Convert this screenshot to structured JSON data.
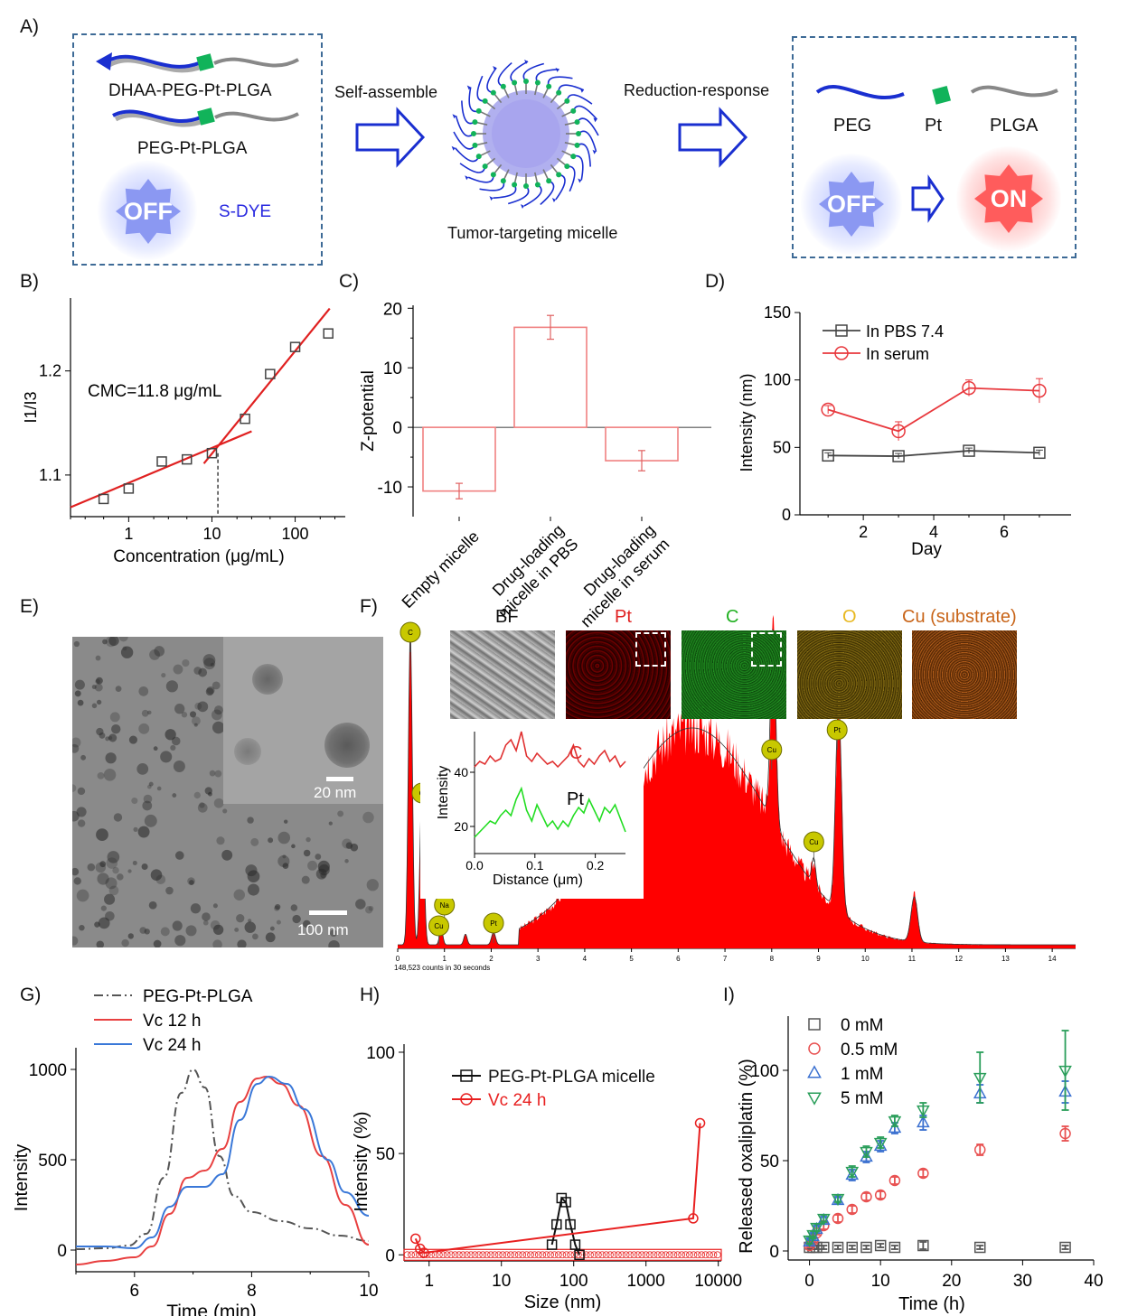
{
  "panel_labels": {
    "a": "A)",
    "b": "B)",
    "c": "C)",
    "d": "D)",
    "e": "E)",
    "f": "F)",
    "g": "G)",
    "h": "H)",
    "i": "I)"
  },
  "schematic": {
    "polymer1": "DHAA-PEG-Pt-PLGA",
    "polymer2": "PEG-Pt-PLGA",
    "off_label": "OFF",
    "dye_label": "S-DYE",
    "step1": "Self-assemble",
    "micelle_caption": "Tumor-targeting micelle",
    "step2": "Reduction-response",
    "part_peg": "PEG",
    "part_pt": "Pt",
    "part_plga": "PLGA",
    "off_label2": "OFF",
    "on_label": "ON",
    "colors": {
      "peg": "#1a2fd0",
      "pt": "#11b35a",
      "plga": "#888888",
      "box": "#3d6a96",
      "off": "#8b98f2",
      "on": "#ff5c5c"
    }
  },
  "chart_data": [
    {
      "id": "B",
      "type": "scatter",
      "xscale": "log",
      "x": [
        0.5,
        1,
        2.5,
        5,
        10,
        25,
        50,
        100,
        250
      ],
      "y": [
        1.077,
        1.087,
        1.113,
        1.115,
        1.121,
        1.154,
        1.197,
        1.223,
        1.236
      ],
      "fit_low": {
        "x": [
          0.2,
          30
        ],
        "y": [
          1.069,
          1.142
        ]
      },
      "fit_high": {
        "x": [
          8,
          260
        ],
        "y": [
          1.111,
          1.26
        ]
      },
      "cmc_x": 11.8,
      "annotation": "CMC=11.8 μg/mL",
      "xlabel": "Concentration (μg/mL)",
      "ylabel": "I1/I3",
      "xticks": [
        "1",
        "10",
        "100"
      ],
      "yticks": [
        "1.1",
        "1.2"
      ],
      "xlim": [
        0.2,
        400
      ],
      "ylim": [
        1.06,
        1.27
      ]
    },
    {
      "id": "C",
      "type": "bar",
      "categories": [
        "Empty micelle",
        "Drug-loading micelle in PBS",
        "Drug-loading micelle in serum"
      ],
      "category_lines": [
        [
          "Empty micelle"
        ],
        [
          "Drug-loading",
          "micelle in PBS"
        ],
        [
          "Drug-loading",
          "micelle in serum"
        ]
      ],
      "values": [
        -10.7,
        16.8,
        -5.6
      ],
      "errors": [
        1.3,
        2.0,
        1.7
      ],
      "ylabel": "Z-potential",
      "yticks": [
        "-10",
        "0",
        "10",
        "20"
      ],
      "ylim": [
        -15,
        20.5
      ],
      "color": "#f08080"
    },
    {
      "id": "D",
      "type": "line",
      "x": [
        1,
        3,
        5,
        7
      ],
      "series": [
        {
          "name": "In PBS 7.4",
          "values": [
            44,
            43.5,
            47.5,
            46
          ],
          "errors": [
            2,
            2,
            2,
            2
          ],
          "color": "#444444",
          "marker": "square"
        },
        {
          "name": "In serum",
          "values": [
            78,
            62,
            94,
            92
          ],
          "errors": [
            3,
            7,
            6,
            9
          ],
          "color": "#e8383d",
          "marker": "circle"
        }
      ],
      "xlabel": "Day",
      "ylabel": "Intensity (nm)",
      "xticks": [
        "2",
        "4",
        "6"
      ],
      "yticks": [
        "0",
        "50",
        "100",
        "150"
      ],
      "xlim": [
        0.2,
        7.9
      ],
      "ylim": [
        0,
        150
      ]
    },
    {
      "id": "F",
      "type": "area",
      "xlabel_note": "148,523 counts in 30 seconds",
      "xticks": [
        "0",
        "1",
        "2",
        "3",
        "4",
        "5",
        "6",
        "7",
        "8",
        "9",
        "10",
        "11",
        "12",
        "13",
        "14"
      ],
      "xlim": [
        0,
        14.5
      ],
      "peaks": [
        {
          "label": "C",
          "x": 0.27
        },
        {
          "label": "O",
          "x": 0.52
        },
        {
          "label": "Na",
          "x": 1.0
        },
        {
          "label": "Cu",
          "x": 0.93
        },
        {
          "label": "Pt",
          "x": 2.05
        },
        {
          "label": "Cu",
          "x": 8.0
        },
        {
          "label": "Cu",
          "x": 8.9
        },
        {
          "label": "Pt",
          "x": 9.4
        }
      ],
      "map_labels": [
        "BF",
        "Pt",
        "C",
        "O",
        "Cu (substrate)"
      ],
      "inset": {
        "xlabel": "Distance (μm)",
        "ylabel": "Intensity",
        "xticks": [
          "0.0",
          "0.1",
          "0.2"
        ],
        "yticks": [
          "20",
          "40"
        ],
        "series": [
          {
            "name": "C",
            "color": "#e03030"
          },
          {
            "name": "Pt",
            "color": "#22dd22"
          }
        ]
      }
    },
    {
      "id": "G",
      "type": "line",
      "series": [
        {
          "name": "PEG-Pt-PLGA",
          "color": "#555555",
          "style": "dashdot",
          "x": [
            5,
            5.5,
            5.9,
            6.2,
            6.5,
            6.8,
            7.0,
            7.2,
            7.45,
            7.7,
            8.0,
            8.5,
            9.0,
            9.5,
            10
          ],
          "values": [
            5,
            10,
            25,
            90,
            400,
            870,
            1000,
            900,
            520,
            300,
            210,
            160,
            120,
            80,
            50
          ]
        },
        {
          "name": "Vc 12 h",
          "color": "#e84040",
          "style": "solid",
          "x": [
            5,
            5.5,
            6.0,
            6.3,
            6.6,
            6.9,
            7.2,
            7.5,
            7.8,
            8.1,
            8.25,
            8.5,
            8.8,
            9.2,
            9.6,
            10
          ],
          "values": [
            -80,
            -60,
            -40,
            20,
            200,
            400,
            440,
            560,
            820,
            950,
            960,
            920,
            800,
            520,
            250,
            30
          ]
        },
        {
          "name": "Vc 24 h",
          "color": "#3a78d8",
          "style": "solid",
          "x": [
            5,
            5.5,
            6.0,
            6.3,
            6.6,
            6.9,
            7.2,
            7.5,
            7.8,
            8.1,
            8.3,
            8.6,
            8.9,
            9.3,
            9.6,
            10
          ],
          "values": [
            20,
            20,
            10,
            70,
            240,
            350,
            350,
            420,
            720,
            920,
            960,
            920,
            780,
            500,
            320,
            190
          ]
        }
      ],
      "xlabel": "Time (min)",
      "ylabel": "Intensity",
      "xticks": [
        "6",
        "8",
        "10"
      ],
      "yticks": [
        "0",
        "500",
        "1000"
      ],
      "xlim": [
        5,
        10
      ],
      "ylim": [
        -120,
        1120
      ]
    },
    {
      "id": "H",
      "type": "line",
      "xscale": "log",
      "series": [
        {
          "name": "PEG-Pt-PLGA micelle",
          "color": "#111111",
          "marker": "square",
          "x": [
            50,
            58,
            68,
            78,
            90,
            105,
            120
          ],
          "values": [
            5,
            15,
            28,
            26,
            15,
            5,
            0
          ]
        },
        {
          "name": "Vc 24 h",
          "color": "#e82020",
          "marker": "circle",
          "x": [
            0.65,
            0.75,
            0.85,
            4500,
            5600
          ],
          "values": [
            8,
            3,
            1,
            18,
            65
          ]
        }
      ],
      "xlabel": "Size (nm)",
      "ylabel": "Intensity (%)",
      "xticks": [
        "1",
        "10",
        "100",
        "1000",
        "10000"
      ],
      "yticks": [
        "0",
        "50",
        "100"
      ],
      "xlim": [
        0.45,
        11000
      ],
      "ylim": [
        -3,
        104
      ]
    },
    {
      "id": "I",
      "type": "scatter",
      "series": [
        {
          "name": "0 mM",
          "color": "#555555",
          "marker": "square",
          "x": [
            0,
            0.5,
            1,
            2,
            4,
            6,
            8,
            10,
            12,
            16,
            24,
            36
          ],
          "values": [
            2,
            2,
            2,
            2,
            2,
            2,
            2,
            3,
            2,
            3,
            2,
            2
          ],
          "errors": [
            1,
            1,
            1,
            1,
            1,
            1,
            1,
            1,
            1,
            2,
            1,
            1
          ]
        },
        {
          "name": "0.5 mM",
          "color": "#e85050",
          "marker": "circle",
          "x": [
            0,
            0.5,
            1,
            2,
            4,
            6,
            8,
            10,
            12,
            16,
            24,
            36
          ],
          "values": [
            3,
            6,
            10,
            14,
            18,
            23,
            30,
            31,
            39,
            43,
            56,
            65
          ],
          "errors": [
            1,
            1,
            1,
            2,
            2,
            2,
            2,
            2,
            2,
            2,
            3,
            4
          ]
        },
        {
          "name": "1 mM",
          "color": "#3a70d0",
          "marker": "triangle-up",
          "x": [
            0,
            0.5,
            1,
            2,
            4,
            6,
            8,
            10,
            12,
            16,
            24,
            36
          ],
          "values": [
            5,
            8,
            12,
            17,
            28,
            42,
            52,
            58,
            68,
            71,
            87,
            88
          ],
          "errors": [
            2,
            2,
            2,
            2,
            2,
            3,
            3,
            3,
            3,
            4,
            5,
            6
          ]
        },
        {
          "name": "5 mM",
          "color": "#2a9e5a",
          "marker": "triangle-down",
          "x": [
            0,
            0.5,
            1,
            2,
            4,
            6,
            8,
            10,
            12,
            16,
            24,
            36
          ],
          "values": [
            6,
            9,
            13,
            18,
            29,
            44,
            55,
            60,
            72,
            78,
            96,
            100
          ],
          "errors": [
            2,
            2,
            2,
            2,
            2,
            3,
            3,
            3,
            3,
            4,
            14,
            22
          ]
        }
      ],
      "xlabel": "Time (h)",
      "ylabel": "Released oxaliplatin (%)",
      "xticks": [
        "0",
        "10",
        "20",
        "30",
        "40"
      ],
      "yticks": [
        "0",
        "50",
        "100"
      ],
      "xlim": [
        -3,
        40
      ],
      "ylim": [
        -5,
        130
      ]
    }
  ],
  "tem": {
    "scale_main": "100 nm",
    "scale_inset": "20 nm"
  }
}
